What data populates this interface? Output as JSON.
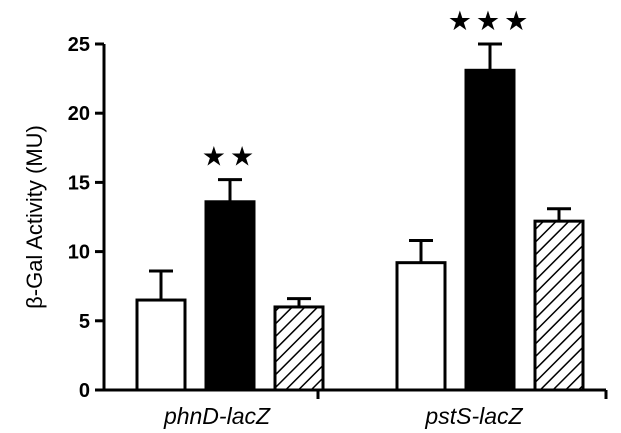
{
  "chart_data": {
    "type": "bar",
    "ylabel": "β-Gal Activity (MU)",
    "ylim": [
      0,
      25
    ],
    "yticks": [
      "0",
      "5",
      "10",
      "15",
      "20",
      "25"
    ],
    "grid": false,
    "categories": [
      "phnD-lacZ",
      "pstS-lacZ"
    ],
    "series": [
      {
        "fill": "white",
        "values": [
          6.5,
          9.2
        ],
        "errors": [
          2.1,
          1.6
        ]
      },
      {
        "fill": "black",
        "values": [
          13.6,
          23.1
        ],
        "errors": [
          1.6,
          1.9
        ]
      },
      {
        "fill": "hatched",
        "values": [
          6.0,
          12.2
        ],
        "errors": [
          0.6,
          0.9
        ]
      }
    ],
    "annotations": [
      {
        "category": 0,
        "series": 1,
        "text": "★★"
      },
      {
        "category": 1,
        "series": 1,
        "text": "★★★"
      }
    ]
  }
}
